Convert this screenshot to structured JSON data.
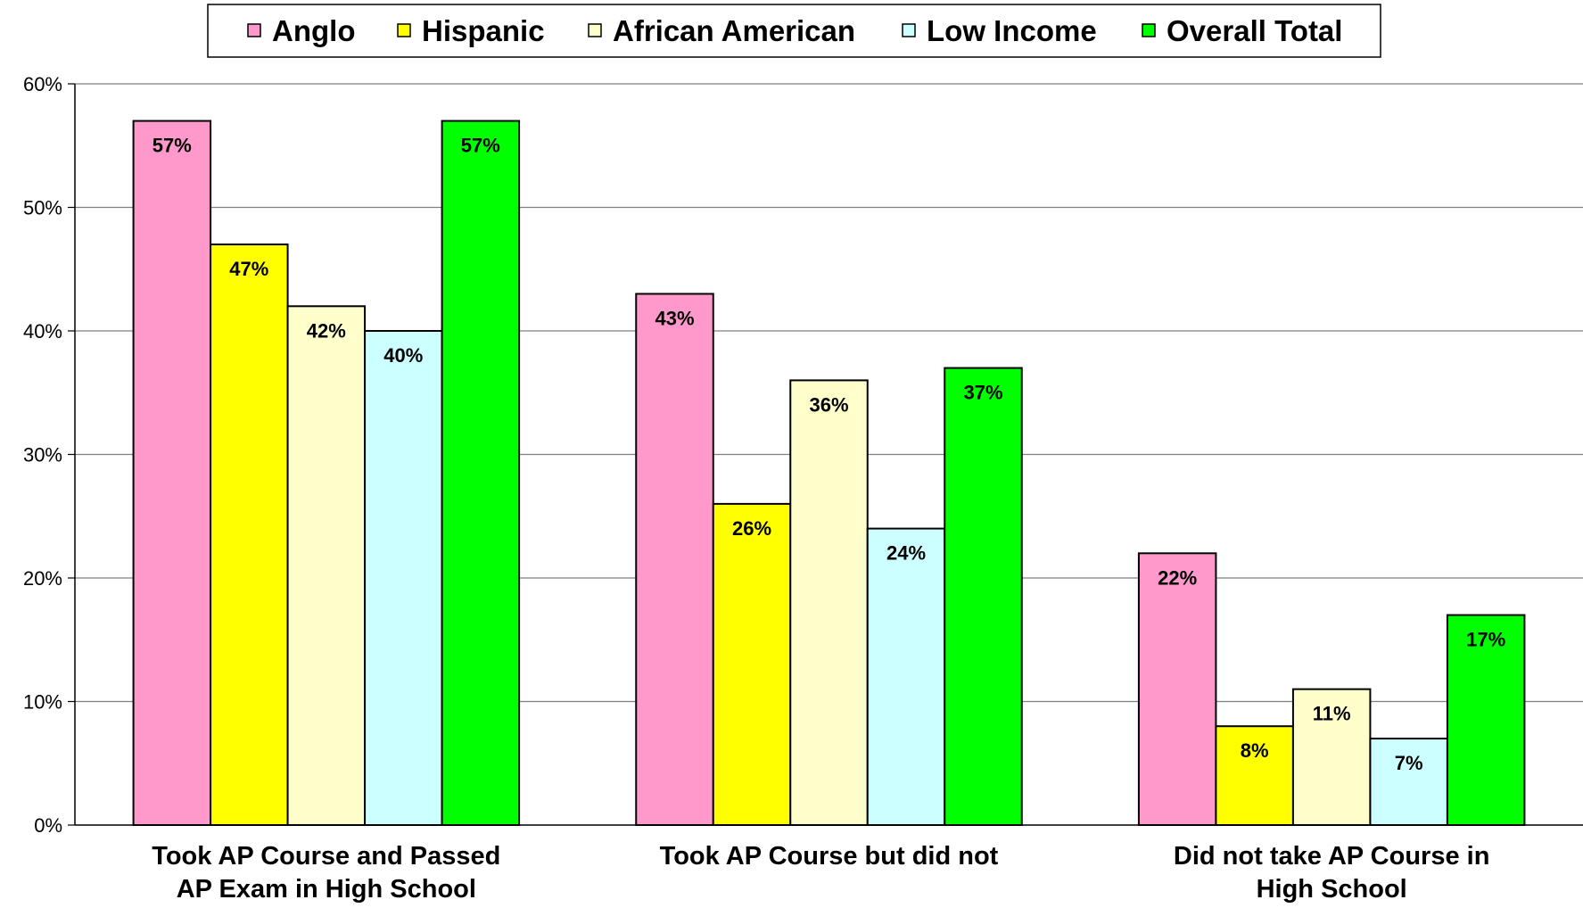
{
  "chart_data": {
    "type": "bar",
    "title": "",
    "xlabel": "",
    "ylabel": "",
    "ylim": [
      0,
      60
    ],
    "yticks": [
      0,
      10,
      20,
      30,
      40,
      50,
      60
    ],
    "ytick_labels": [
      "0%",
      "10%",
      "20%",
      "30%",
      "40%",
      "50%",
      "60%"
    ],
    "grid": true,
    "legend_position": "top-center",
    "categories": [
      [
        "Took AP Course and Passed",
        "AP Exam in High School"
      ],
      [
        "Took AP Course but did not"
      ],
      [
        "Did not take AP Course in",
        "High School"
      ]
    ],
    "series": [
      {
        "name": "Anglo",
        "color": "#FF99CC",
        "values": [
          57,
          43,
          22
        ],
        "labels": [
          "57%",
          "43%",
          "22%"
        ]
      },
      {
        "name": "Hispanic",
        "color": "#FFFF00",
        "values": [
          47,
          26,
          8
        ],
        "labels": [
          "47%",
          "26%",
          "8%"
        ]
      },
      {
        "name": "African American",
        "color": "#FFFFCC",
        "values": [
          42,
          36,
          11
        ],
        "labels": [
          "42%",
          "36%",
          "11%"
        ]
      },
      {
        "name": "Low Income",
        "color": "#CCFFFF",
        "values": [
          40,
          24,
          7
        ],
        "labels": [
          "40%",
          "24%",
          "7%"
        ]
      },
      {
        "name": "Overall Total",
        "color": "#00FF00",
        "values": [
          57,
          37,
          17
        ],
        "labels": [
          "57%",
          "37%",
          "17%"
        ]
      }
    ]
  }
}
